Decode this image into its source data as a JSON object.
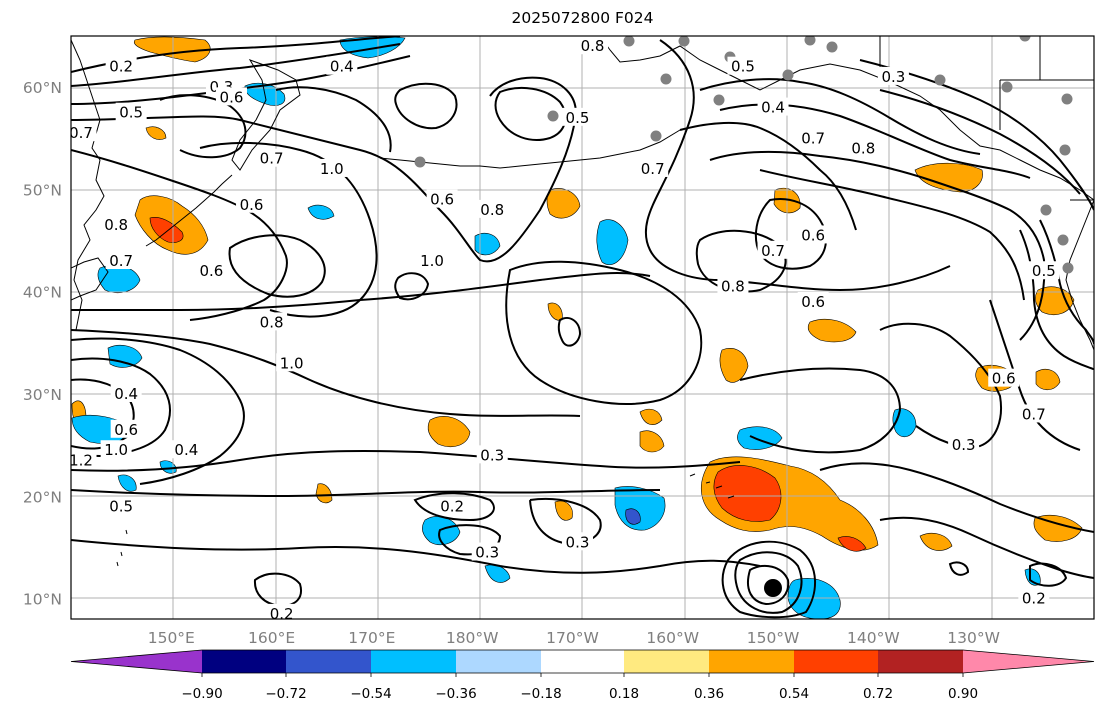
{
  "title": "2025072800 F024",
  "map": {
    "lat_labels": [
      "60°N",
      "50°N",
      "40°N",
      "30°N",
      "20°N",
      "10°N"
    ],
    "lat_values": [
      60,
      50,
      40,
      30,
      20,
      10
    ],
    "lon_labels": [
      "150°E",
      "160°E",
      "170°E",
      "180°W",
      "170°W",
      "160°W",
      "150°W",
      "140°W",
      "130°W"
    ],
    "lon_values": [
      150,
      160,
      170,
      180,
      190,
      200,
      210,
      220,
      230
    ],
    "extent": {
      "lon": [
        140,
        242
      ],
      "lat": [
        8,
        65
      ]
    },
    "gridlines": true,
    "coastline_color": "#000000",
    "contour_color": "#000000",
    "station_marker_color": "#808080",
    "storm_marker": {
      "lon": 210,
      "lat": 11
    }
  },
  "contour_labels": [
    {
      "text": "0.4",
      "lon": 167,
      "lat": 62
    },
    {
      "text": "0.2",
      "lon": 145,
      "lat": 62
    },
    {
      "text": "0.3",
      "lon": 155,
      "lat": 60
    },
    {
      "text": "0.6",
      "lon": 156,
      "lat": 59
    },
    {
      "text": "0.5",
      "lon": 146,
      "lat": 57.5
    },
    {
      "text": "0.7",
      "lon": 141,
      "lat": 55.5
    },
    {
      "text": "0.7",
      "lon": 160,
      "lat": 53
    },
    {
      "text": "1.0",
      "lon": 166,
      "lat": 52
    },
    {
      "text": "0.6",
      "lon": 158,
      "lat": 48.5
    },
    {
      "text": "0.8",
      "lon": 144.5,
      "lat": 46.5
    },
    {
      "text": "0.7",
      "lon": 145,
      "lat": 43
    },
    {
      "text": "0.6",
      "lon": 154,
      "lat": 42
    },
    {
      "text": "0.8",
      "lon": 160,
      "lat": 37
    },
    {
      "text": "1.0",
      "lon": 162,
      "lat": 33
    },
    {
      "text": "0.4",
      "lon": 145.5,
      "lat": 30
    },
    {
      "text": "0.6",
      "lon": 145.5,
      "lat": 26.5
    },
    {
      "text": "1.0",
      "lon": 144.5,
      "lat": 24.5
    },
    {
      "text": "1.2",
      "lon": 141,
      "lat": 23.5
    },
    {
      "text": "0.4",
      "lon": 151.5,
      "lat": 24.5
    },
    {
      "text": "0.5",
      "lon": 145,
      "lat": 19
    },
    {
      "text": "0.6",
      "lon": 177,
      "lat": 49
    },
    {
      "text": "0.8",
      "lon": 182,
      "lat": 48
    },
    {
      "text": "1.0",
      "lon": 176,
      "lat": 43
    },
    {
      "text": "0.5",
      "lon": 190.5,
      "lat": 57
    },
    {
      "text": "0.8",
      "lon": 192,
      "lat": 64
    },
    {
      "text": "0.5",
      "lon": 207,
      "lat": 62
    },
    {
      "text": "0.4",
      "lon": 210,
      "lat": 58
    },
    {
      "text": "0.7",
      "lon": 198,
      "lat": 52
    },
    {
      "text": "0.7",
      "lon": 214,
      "lat": 55
    },
    {
      "text": "0.8",
      "lon": 219,
      "lat": 54
    },
    {
      "text": "0.3",
      "lon": 222,
      "lat": 61
    },
    {
      "text": "0.6",
      "lon": 214,
      "lat": 45.5
    },
    {
      "text": "0.7",
      "lon": 210,
      "lat": 44
    },
    {
      "text": "0.8",
      "lon": 206,
      "lat": 40.5
    },
    {
      "text": "0.6",
      "lon": 214,
      "lat": 39
    },
    {
      "text": "0.5",
      "lon": 237,
      "lat": 42
    },
    {
      "text": "0.6",
      "lon": 233,
      "lat": 31.5
    },
    {
      "text": "0.7",
      "lon": 236,
      "lat": 28
    },
    {
      "text": "0.3",
      "lon": 229,
      "lat": 25
    },
    {
      "text": "0.3",
      "lon": 182,
      "lat": 24
    },
    {
      "text": "0.2",
      "lon": 178,
      "lat": 19
    },
    {
      "text": "0.3",
      "lon": 181.5,
      "lat": 14.5
    },
    {
      "text": "0.3",
      "lon": 190.5,
      "lat": 15.5
    },
    {
      "text": "0.2",
      "lon": 161,
      "lat": 8.5
    },
    {
      "text": "0.2",
      "lon": 236,
      "lat": 10
    }
  ],
  "colorbar": {
    "colors": [
      "#9933cc",
      "#000080",
      "#3355cc",
      "#00bfff",
      "#add8ff",
      "#ffffff",
      "#ffea80",
      "#ffa500",
      "#ff4000",
      "#b22222",
      "#ff88aa"
    ],
    "tick_labels": [
      "−0.90",
      "−0.72",
      "−0.54",
      "−0.36",
      "−0.18",
      "0.18",
      "0.36",
      "0.54",
      "0.72",
      "0.90"
    ]
  }
}
